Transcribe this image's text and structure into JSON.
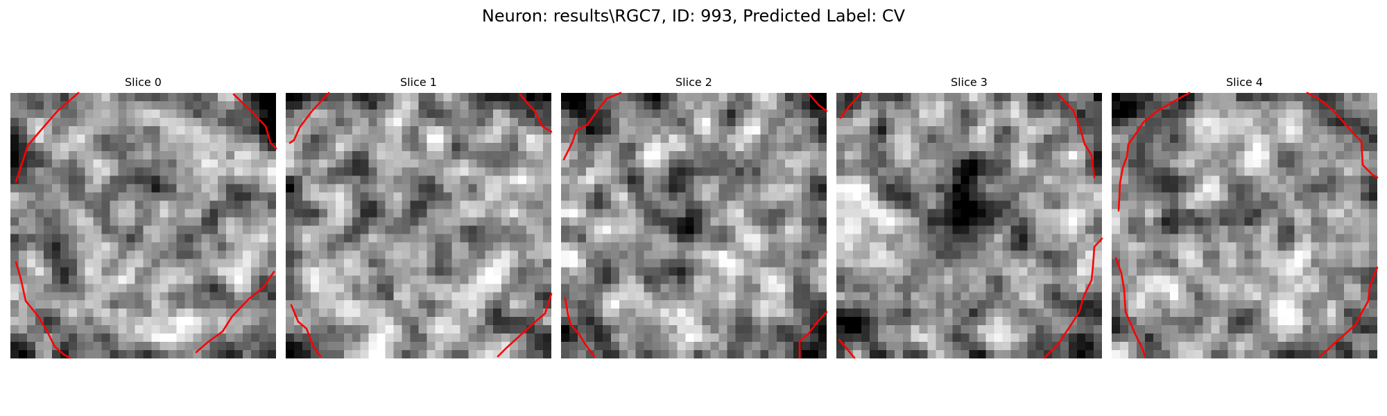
{
  "figure": {
    "title": "Neuron: results\\RGC7, ID: 993, Predicted Label: CV"
  },
  "colors": {
    "contour": "#ff0000",
    "background": "#ffffff"
  },
  "panels": [
    {
      "title": "Slice 0",
      "seed": 11,
      "dark_center": 0.0
    },
    {
      "title": "Slice 1",
      "seed": 29,
      "dark_center": 0.25
    },
    {
      "title": "Slice 2",
      "seed": 47,
      "dark_center": 0.15
    },
    {
      "title": "Slice 3",
      "seed": 83,
      "dark_center": 0.9
    },
    {
      "title": "Slice 4",
      "seed": 101,
      "dark_center": 0.1
    }
  ]
}
